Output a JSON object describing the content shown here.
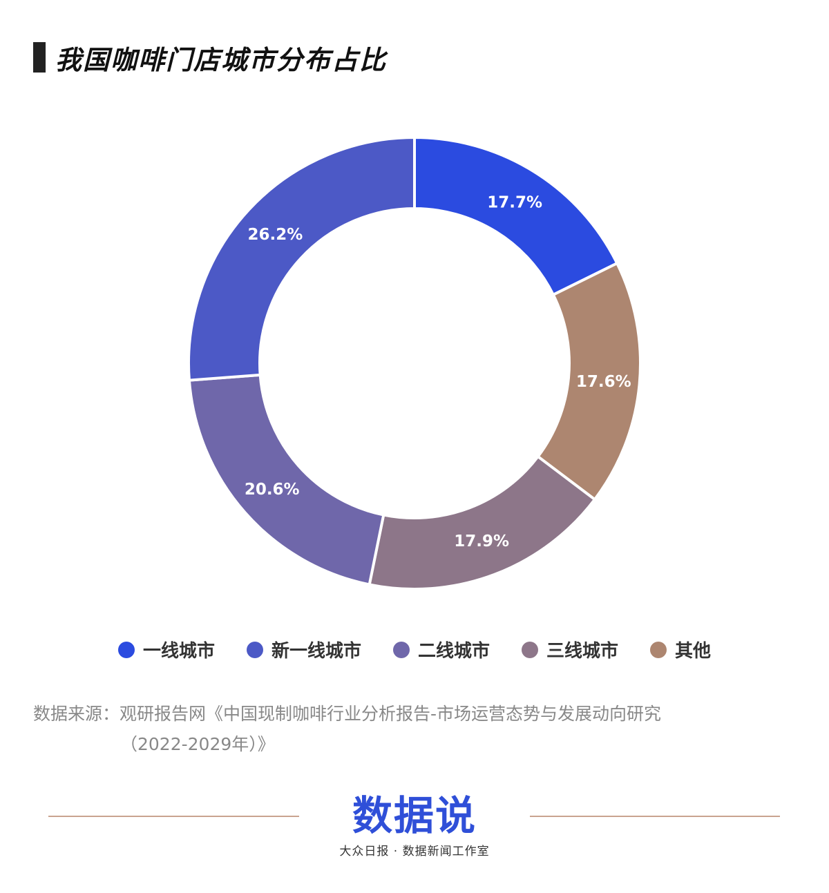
{
  "title": "我国咖啡门店城市分布占比",
  "chart_data": {
    "type": "pie",
    "donut": true,
    "title": "我国咖啡门店城市分布占比",
    "categories": [
      "一线城市",
      "其他",
      "三线城市",
      "二线城市",
      "新一线城市"
    ],
    "values": [
      17.7,
      17.6,
      17.9,
      20.6,
      26.2
    ],
    "labels": [
      "17.7%",
      "17.6%",
      "17.9%",
      "20.6%",
      "26.2%"
    ],
    "colors": [
      "#2b4be0",
      "#ad8670",
      "#8d7689",
      "#6f67aa",
      "#4c59c6"
    ],
    "legend_position": "bottom"
  },
  "legend": [
    {
      "label": "一线城市",
      "color": "#2b4be0"
    },
    {
      "label": "新一线城市",
      "color": "#4c59c6"
    },
    {
      "label": "二线城市",
      "color": "#6f67aa"
    },
    {
      "label": "三线城市",
      "color": "#8d7689"
    },
    {
      "label": "其他",
      "color": "#ad8670"
    }
  ],
  "source": {
    "line1": "数据来源：观研报告网《中国现制咖啡行业分析报告-市场运营态势与发展动向研究",
    "line2": "（2022-2029年）》"
  },
  "footer": {
    "logo_text": "数据说",
    "tagline": "大众日报 · 数据新闻工作室"
  }
}
